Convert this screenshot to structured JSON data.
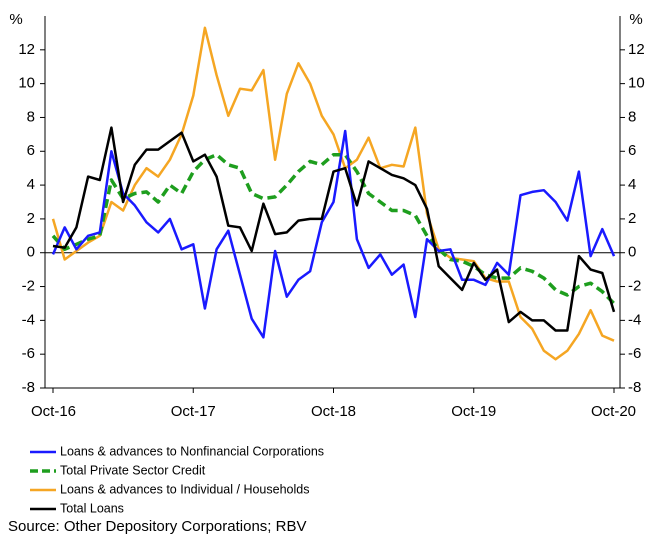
{
  "chart_data": {
    "type": "line",
    "y_label": "%",
    "y2_label": "%",
    "source": "Source: Other Depository Corporations; RBV",
    "categories": [
      "Oct-16",
      null,
      null,
      null,
      null,
      null,
      null,
      null,
      null,
      null,
      null,
      null,
      "Oct-17",
      null,
      null,
      null,
      null,
      null,
      null,
      null,
      null,
      null,
      null,
      null,
      "Oct-18",
      null,
      null,
      null,
      null,
      null,
      null,
      null,
      null,
      null,
      null,
      null,
      "Oct-19",
      null,
      null,
      null,
      null,
      null,
      null,
      null,
      null,
      null,
      null,
      null,
      "Oct-20"
    ],
    "ylim": [
      -8,
      14
    ],
    "yticks": [
      -8,
      -6,
      -4,
      -2,
      0,
      2,
      4,
      6,
      8,
      10,
      12
    ],
    "y2lim": [
      -8,
      14
    ],
    "y2ticks": [
      -8,
      -6,
      -4,
      -2,
      0,
      2,
      4,
      6,
      8,
      10,
      12
    ],
    "series": [
      {
        "name": "Loans & advances to Nonfinancial Corporations",
        "color": "#1a1aff",
        "dash": false,
        "values": [
          -0.1,
          1.5,
          0.2,
          1.0,
          1.2,
          6.0,
          3.5,
          2.8,
          1.8,
          1.2,
          2.0,
          0.2,
          0.5,
          -3.3,
          0.2,
          1.3,
          -1.3,
          -3.9,
          -5.0,
          0.1,
          -2.6,
          -1.6,
          -1.1,
          1.8,
          3.0,
          7.2,
          0.8,
          -0.9,
          -0.1,
          -1.3,
          -0.7,
          -3.8,
          0.8,
          0.1,
          0.2,
          -1.6,
          -1.6,
          -1.9,
          -0.6,
          -1.3,
          3.4,
          3.6,
          3.7,
          3.0,
          1.9,
          4.8,
          -0.2,
          1.4,
          -0.2
        ]
      },
      {
        "name": "Total Private Sector Credit",
        "color": "#1e9e1e",
        "dash": true,
        "values": [
          1.0,
          0.2,
          0.5,
          0.8,
          1.0,
          4.3,
          3.2,
          3.5,
          3.6,
          3.0,
          4.0,
          3.5,
          4.8,
          5.5,
          5.8,
          5.2,
          5.0,
          3.5,
          3.2,
          3.3,
          4.0,
          4.8,
          5.4,
          5.2,
          5.8,
          5.8,
          4.8,
          3.5,
          3.0,
          2.5,
          2.5,
          2.2,
          1.0,
          0.2,
          -0.4,
          -0.5,
          -0.8,
          -1.3,
          -1.5,
          -1.5,
          -0.9,
          -1.1,
          -1.5,
          -2.2,
          -2.5,
          -2.0,
          -1.8,
          -2.3,
          -3.0
        ]
      },
      {
        "name": "Loans & advances to Individual / Households",
        "color": "#f5a623",
        "dash": false,
        "values": [
          2.0,
          -0.4,
          0.1,
          0.6,
          1.0,
          3.0,
          2.5,
          4.0,
          5.0,
          4.5,
          5.5,
          7.0,
          9.3,
          13.3,
          10.5,
          8.1,
          9.7,
          9.6,
          10.8,
          5.5,
          9.4,
          11.2,
          10.0,
          8.1,
          7.0,
          5.0,
          5.5,
          6.8,
          5.0,
          5.2,
          5.1,
          7.4,
          2.3,
          0.2,
          -0.3,
          -0.4,
          -0.5,
          -1.5,
          -1.7,
          -1.7,
          -3.8,
          -4.5,
          -5.8,
          -6.3,
          -5.8,
          -4.8,
          -3.4,
          -4.9,
          -5.2
        ]
      },
      {
        "name": "Total Loans",
        "color": "#000000",
        "dash": false,
        "values": [
          0.4,
          0.3,
          1.5,
          4.5,
          4.3,
          7.4,
          3.0,
          5.2,
          6.1,
          6.1,
          6.6,
          7.1,
          5.4,
          5.8,
          4.5,
          1.6,
          1.5,
          0.1,
          2.9,
          1.1,
          1.2,
          1.9,
          2.0,
          2.0,
          4.8,
          5.0,
          2.8,
          5.4,
          5.0,
          4.6,
          4.4,
          4.0,
          2.6,
          -0.8,
          -1.5,
          -2.2,
          -0.6,
          -1.6,
          -1.0,
          -4.1,
          -3.5,
          -4.0,
          -4.0,
          -4.6,
          -4.6,
          -0.2,
          -1.0,
          -1.2,
          -3.5
        ]
      }
    ]
  }
}
